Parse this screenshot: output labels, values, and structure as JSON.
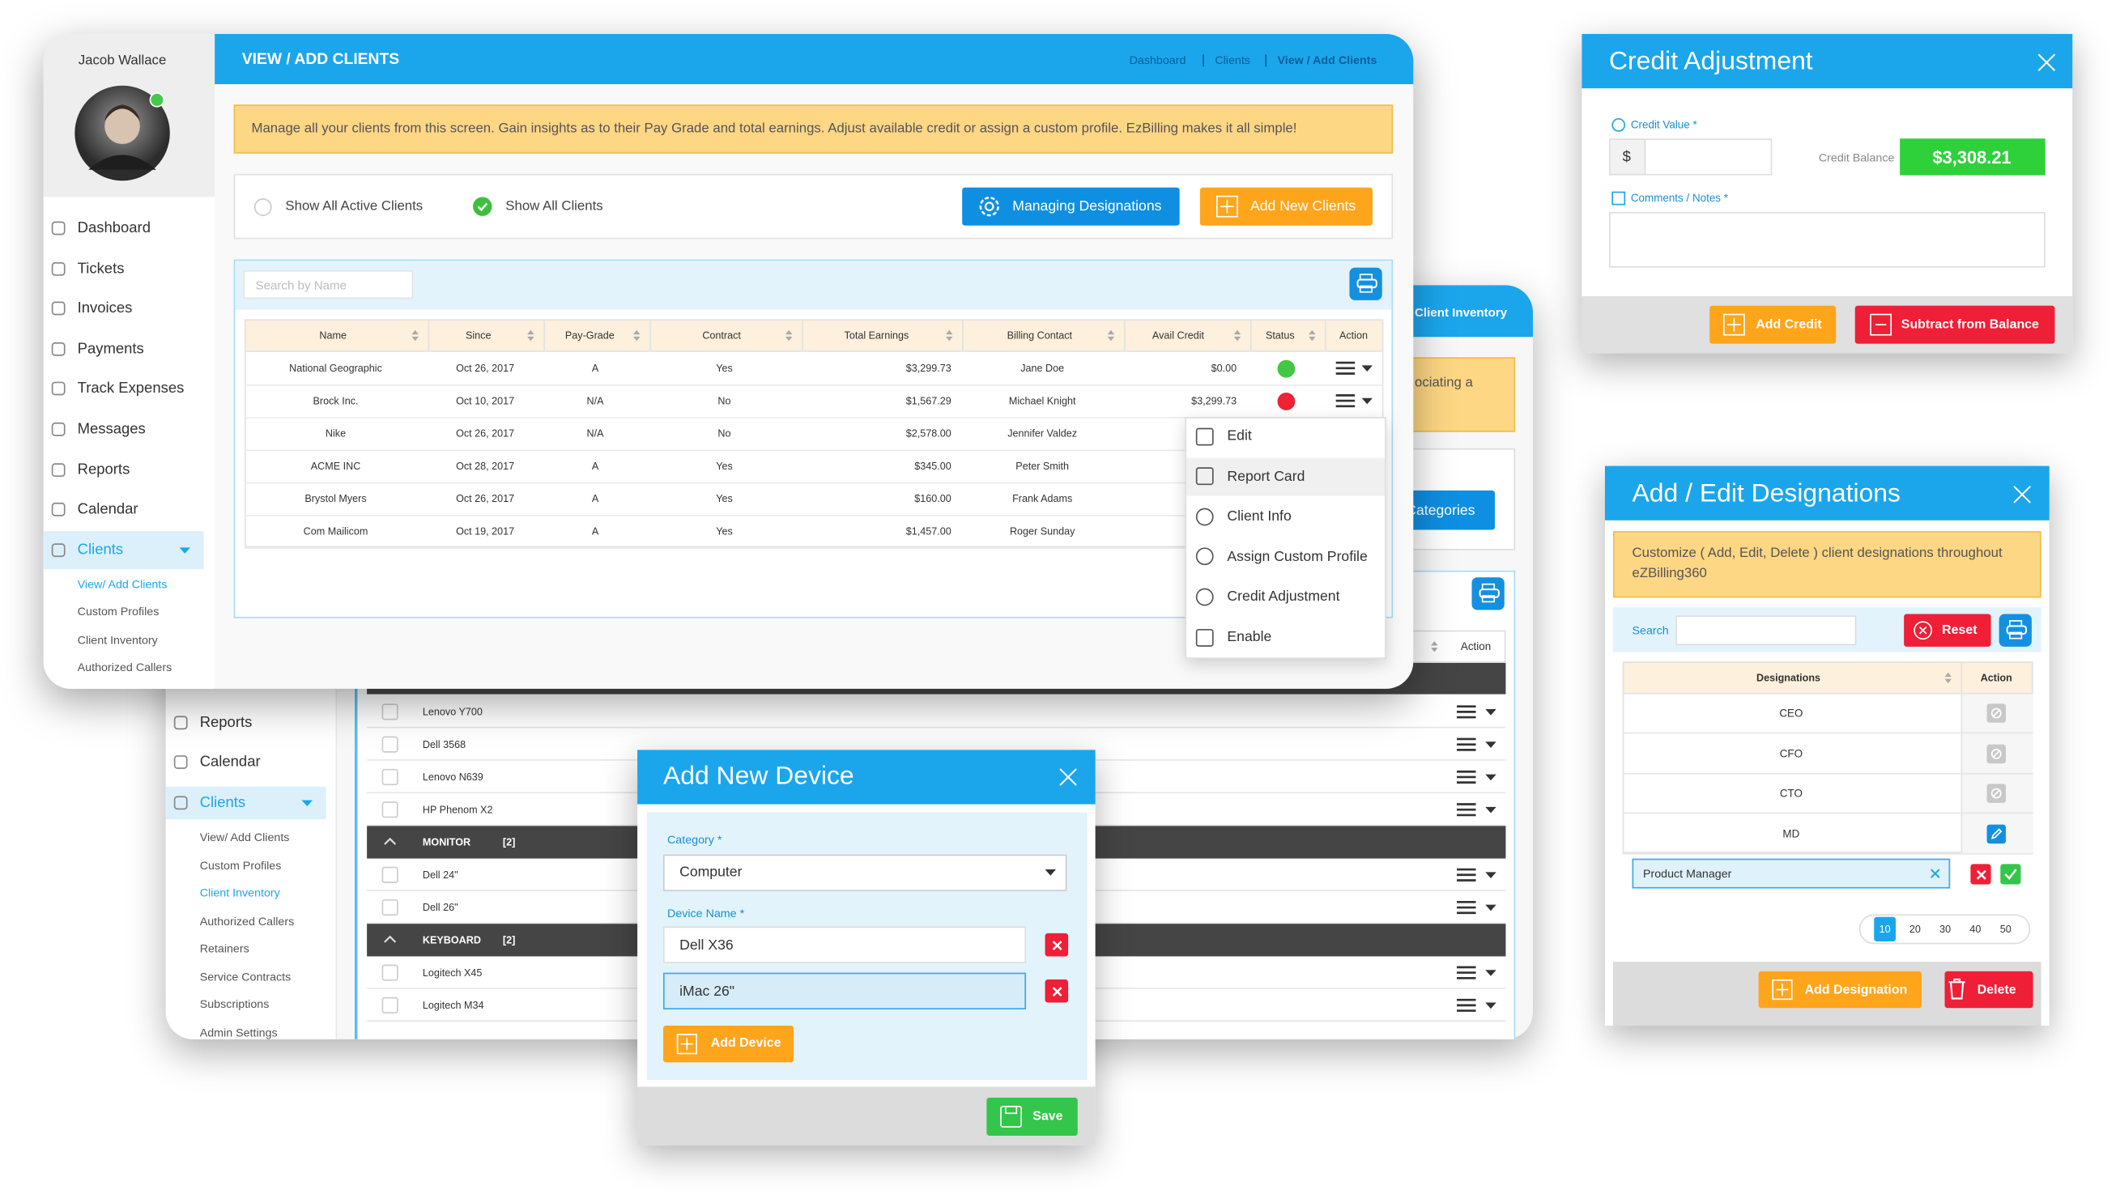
{
  "main_window": {
    "user_name": "Jacob Wallace",
    "nav": [
      "Dashboard",
      "Tickets",
      "Invoices",
      "Payments",
      "Track Expenses",
      "Messages",
      "Reports",
      "Calendar",
      "Clients"
    ],
    "subnav": [
      "View/ Add Clients",
      "Custom Profiles",
      "Client Inventory",
      "Authorized Callers"
    ],
    "title": "VIEW / ADD CLIENTS",
    "breadcrumb": [
      "Dashboard",
      "Clients",
      "View / Add Clients"
    ],
    "notice": "Manage all your clients from this screen. Gain insights as to their Pay Grade and total earnings. Adjust available credit or assign a custom profile. EzBilling makes it all simple!",
    "filters": [
      "Show All Active Clients",
      "Show All Clients"
    ],
    "buttons": [
      "Managing Designations",
      "Add New Clients"
    ],
    "search_placeholder": "Search by Name",
    "table": {
      "headers": [
        "Name",
        "Since",
        "Pay-Grade",
        "Contract",
        "Total Earnings",
        "Billing Contact",
        "Avail Credit",
        "Status",
        "Action"
      ],
      "rows": [
        [
          "National Geographic",
          "Oct 26, 2017",
          "A",
          "Yes",
          "$3,299.73",
          "Jane Doe",
          "$0.00"
        ],
        [
          "Brock Inc.",
          "Oct 10, 2017",
          "N/A",
          "No",
          "$1,567.29",
          "Michael Knight",
          "$3,299.73"
        ],
        [
          "Nike",
          "Oct 26, 2017",
          "N/A",
          "No",
          "$2,578.00",
          "Jennifer Valdez",
          null
        ],
        [
          "ACME INC",
          "Oct 28, 2017",
          "A",
          "Yes",
          "$345.00",
          "Peter Smith",
          null
        ],
        [
          "Brystol Myers",
          "Oct 26, 2017",
          "A",
          "Yes",
          "$160.00",
          "Frank Adams",
          null
        ],
        [
          "Com Mailicom",
          "Oct 19, 2017",
          "A",
          "Yes",
          "$1,457.00",
          "Roger Sunday",
          null
        ]
      ]
    },
    "action_menu": [
      "Edit",
      "Report Card",
      "Client Info",
      "Assign Custom Profile",
      "Credit Adjustment",
      "Enable"
    ]
  },
  "inventory_window": {
    "title": "Client Inventory",
    "notice_fragment": "ociating a",
    "button": "Categories",
    "nav": [
      "Reports",
      "Calendar",
      "Clients"
    ],
    "subnav": [
      "View/ Add Clients",
      "Custom Profiles",
      "Client Inventory",
      "Authorized Callers",
      "Retainers",
      "Service Contracts",
      "Subscriptions",
      "Admin Settings"
    ],
    "action_header": "Action",
    "rows": [
      {
        "type": "item",
        "label": "Lenovo Y700"
      },
      {
        "type": "item",
        "label": "Dell 3568"
      },
      {
        "type": "item",
        "label": "Lenovo N639"
      },
      {
        "type": "item",
        "label": "HP Phenom X2"
      },
      {
        "type": "group",
        "label": "MONITOR",
        "count": "[2]"
      },
      {
        "type": "item",
        "label": "Dell 24\""
      },
      {
        "type": "item",
        "label": "Dell 26\""
      },
      {
        "type": "group",
        "label": "KEYBOARD",
        "count": "[2]"
      },
      {
        "type": "item",
        "label": "Logitech X45"
      },
      {
        "type": "item",
        "label": "Logitech M34"
      }
    ]
  },
  "device_modal": {
    "title": "Add New Device",
    "category_label": "Category *",
    "category_value": "Computer",
    "device_label": "Device Name *",
    "devices": [
      "Dell X36",
      "iMac 26\""
    ],
    "add_button": "Add Device",
    "save_button": "Save"
  },
  "credit_modal": {
    "title": "Credit Adjustment",
    "credit_label": "Credit Value *",
    "currency": "$",
    "balance_label": "Credit Balance",
    "balance": "$3,308.21",
    "notes_label": "Comments / Notes *",
    "add_button": "Add Credit",
    "subtract_button": "Subtract from Balance"
  },
  "designations_modal": {
    "title": "Add / Edit Designations",
    "notice": "Customize ( Add, Edit, Delete ) client designations throughout eZBilling360",
    "search_label": "Search",
    "reset_button": "Reset",
    "headers": [
      "Designations",
      "Action"
    ],
    "rows": [
      "CEO",
      "CFO",
      "CTO",
      "MD"
    ],
    "edit_value": "Product Manager",
    "pages": [
      "10",
      "20",
      "30",
      "40",
      "50"
    ],
    "add_button": "Add Designation",
    "delete_button": "Delete"
  }
}
